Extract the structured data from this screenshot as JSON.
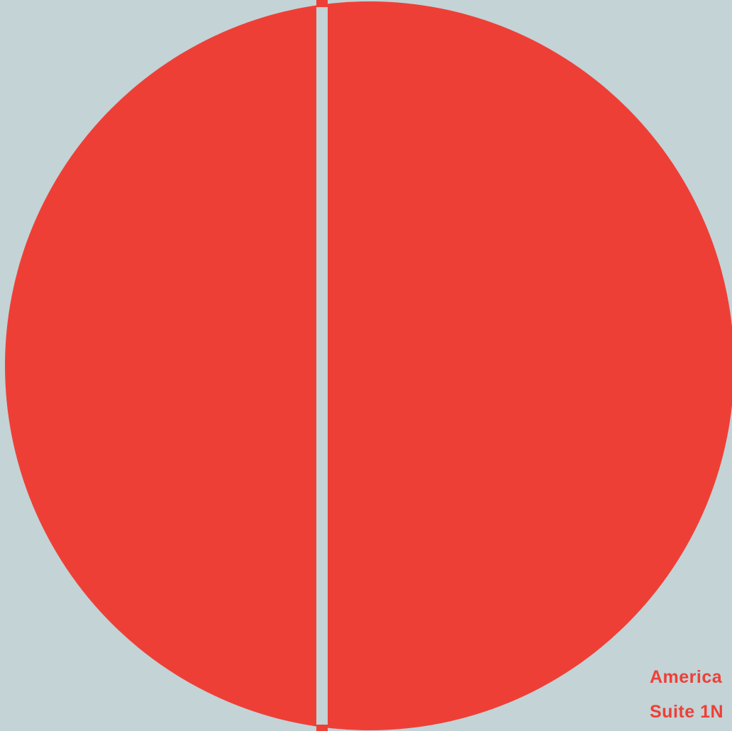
{
  "colors": {
    "background": "#c3d3d6",
    "circle_fill": "#ee3f37",
    "divider": "#c3d3d6",
    "caption_text": "#ee3f37"
  },
  "artwork": {
    "shape": "circle-icon",
    "divider": "vertical-line-icon"
  },
  "caption": {
    "line1": "America",
    "line2": "Suite 1N"
  }
}
